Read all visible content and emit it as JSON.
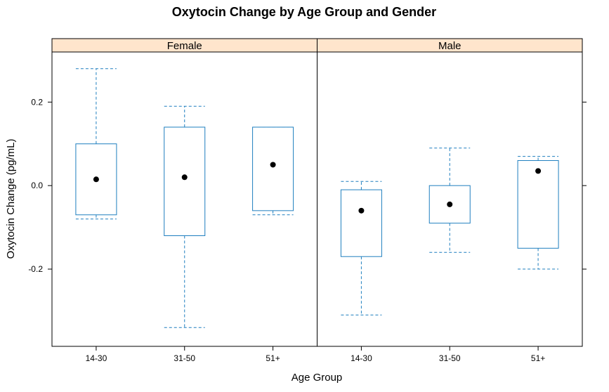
{
  "chart_data": {
    "type": "boxplot",
    "title": "Oxytocin Change by Age Group and Gender",
    "xlabel": "Age Group",
    "ylabel": "Oxytocin Change (pg/mL)",
    "categories": [
      "14-30",
      "31-50",
      "51+"
    ],
    "ylim": [
      -0.385,
      0.32
    ],
    "yticks": [
      -0.2,
      0.0,
      0.2
    ],
    "ytick_labels": [
      "-0.2",
      "0.0",
      "0.2"
    ],
    "colors": {
      "box": "#1f7fbf",
      "strip": "#ffe5cc",
      "point": "#000000",
      "frame": "#000000"
    },
    "panels": [
      {
        "name": "Female",
        "boxes": [
          {
            "category": "14-30",
            "whisker_low": -0.08,
            "q1": -0.07,
            "median": 0.015,
            "q3": 0.1,
            "whisker_high": 0.28
          },
          {
            "category": "31-50",
            "whisker_low": -0.34,
            "q1": -0.12,
            "median": 0.02,
            "q3": 0.14,
            "whisker_high": 0.19
          },
          {
            "category": "51+",
            "whisker_low": -0.07,
            "q1": -0.06,
            "median": 0.05,
            "q3": 0.14,
            "whisker_high": 0.14
          }
        ]
      },
      {
        "name": "Male",
        "boxes": [
          {
            "category": "14-30",
            "whisker_low": -0.31,
            "q1": -0.17,
            "median": -0.06,
            "q3": -0.01,
            "whisker_high": 0.01
          },
          {
            "category": "31-50",
            "whisker_low": -0.16,
            "q1": -0.09,
            "median": -0.045,
            "q3": 0.0,
            "whisker_high": 0.09
          },
          {
            "category": "51+",
            "whisker_low": -0.2,
            "q1": -0.15,
            "median": 0.035,
            "q3": 0.06,
            "whisker_high": 0.07
          }
        ]
      }
    ]
  }
}
